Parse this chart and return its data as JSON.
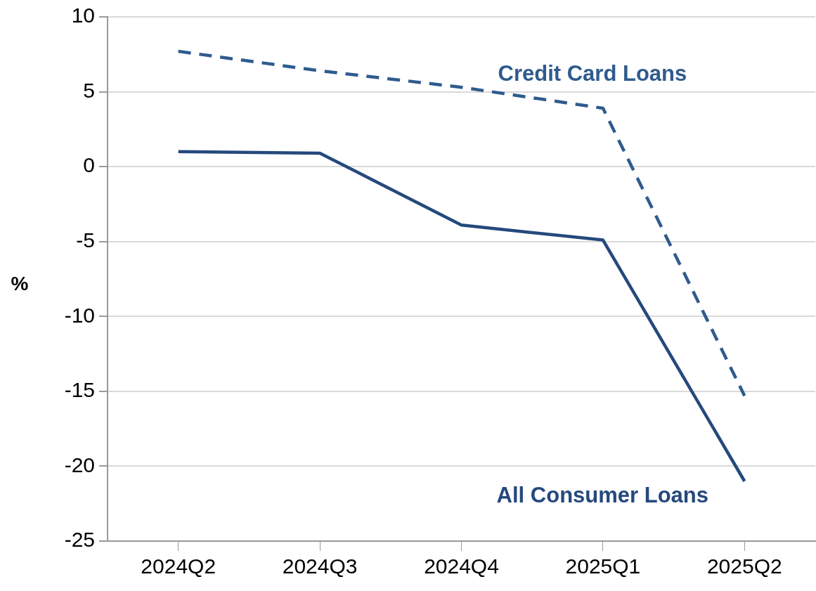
{
  "chart_data": {
    "type": "line",
    "ylabel": "%",
    "categories": [
      "2024Q2",
      "2024Q3",
      "2024Q4",
      "2025Q1",
      "2025Q2"
    ],
    "series": [
      {
        "name": "Credit Card Loans",
        "color": "#2f5b8e",
        "values": [
          7.7,
          6.4,
          5.3,
          3.9,
          -15.3
        ],
        "line_style": "dashed"
      },
      {
        "name": "All Consumer Loans",
        "color": "#25497c",
        "values": [
          1.0,
          0.9,
          -3.9,
          -4.9,
          -21.0
        ],
        "line_style": "solid"
      }
    ],
    "ylim": [
      -25,
      10
    ],
    "yticks": [
      -25,
      -20,
      -15,
      -10,
      -5,
      0,
      5,
      10
    ],
    "grid": "y",
    "legend": false,
    "marker": "none"
  }
}
